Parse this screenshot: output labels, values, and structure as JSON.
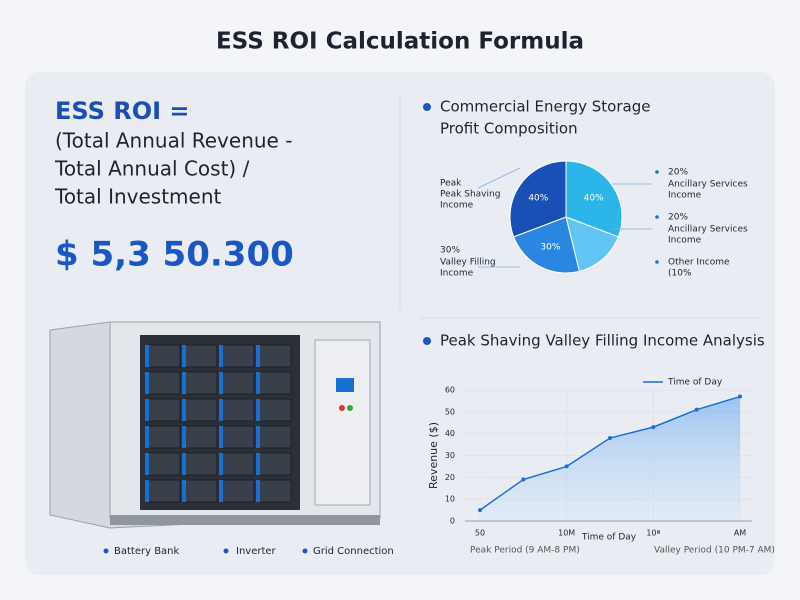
{
  "title": "ESS ROI Calculation Formula",
  "formula": {
    "lead": "ESS ROI =",
    "lines": [
      "(Total Annual Revenue -",
      "Total Annual Cost) /",
      "Total Investment"
    ],
    "amount": "$ 5,3 50.300"
  },
  "equipment_labels": [
    "Battery Bank",
    "Inverter",
    "Grid Connection"
  ],
  "chart_data": [
    {
      "type": "pie",
      "title": "Commercial Energy Storage Profit Composition",
      "values": [
        40,
        20,
        30,
        40
      ],
      "value_labels": [
        "40%",
        null,
        "30%",
        "40%"
      ],
      "colors": [
        "#2cb5e8",
        "#62c4f3",
        "#2a86e0",
        "#1a4fb5"
      ],
      "annotations_left": [
        {
          "lines": [
            "Peak",
            "Peak Shaving",
            "Income"
          ]
        },
        {
          "pct": "30%",
          "lines": [
            "Valley Filling",
            "Income"
          ]
        }
      ],
      "annotations_right": [
        {
          "pct": "20%",
          "lines": [
            "Ancillary Services",
            "Income"
          ]
        },
        {
          "pct": "20%",
          "lines": [
            "Ancillary Services",
            "Income"
          ]
        },
        {
          "lines": [
            "Other Income",
            "(10%"
          ]
        }
      ]
    },
    {
      "type": "line",
      "title": "Peak Shaving Valley Filling Income Analysis",
      "ylabel": "Revenue ($)",
      "xlabel": "Time of Day",
      "categories": [
        "50",
        null,
        "10M",
        null,
        "10ª",
        null,
        "AM"
      ],
      "series": [
        {
          "name": "Time of Day",
          "color": "#1a6fd4",
          "values": [
            5,
            19,
            25,
            38,
            43,
            51,
            57
          ]
        }
      ],
      "ylim": [
        0,
        60
      ],
      "yticks": [
        0,
        10,
        20,
        30,
        40,
        50,
        60
      ],
      "grid": true,
      "legend": "top-right",
      "period_labels": [
        "Peak Period (9 AM-8 PM)",
        "Valley Period (10 PM-7 AM)"
      ]
    }
  ]
}
